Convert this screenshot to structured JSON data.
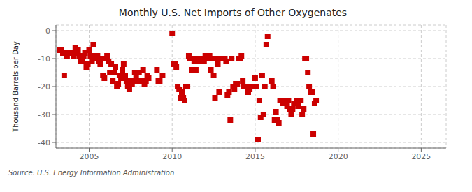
{
  "chart_data": {
    "type": "scatter",
    "title": "Monthly U.S. Net Imports of Other Oxygenates",
    "ylabel": "Thousand Barrels per Day",
    "annotations": [
      "Source: U.S. Energy Information Administration"
    ],
    "xlim": [
      2003.0,
      2026.5
    ],
    "ylim": [
      -42,
      2
    ],
    "xticks": [
      2005,
      2010,
      2015,
      2020,
      2025
    ],
    "yticks": [
      0,
      -10,
      -20,
      -30,
      -40
    ],
    "color": "#CC0000",
    "marker": "square",
    "grid": true,
    "x": [
      2003.25,
      2003.33,
      2003.42,
      2003.5,
      2003.58,
      2003.67,
      2003.75,
      2003.83,
      2003.92,
      2004.0,
      2004.08,
      2004.17,
      2004.25,
      2004.33,
      2004.42,
      2004.5,
      2004.58,
      2004.67,
      2004.75,
      2004.83,
      2004.92,
      2005.0,
      2005.08,
      2005.17,
      2005.25,
      2005.33,
      2005.42,
      2005.5,
      2005.58,
      2005.67,
      2005.75,
      2005.83,
      2005.92,
      2006.0,
      2006.08,
      2006.17,
      2006.25,
      2006.33,
      2006.42,
      2006.5,
      2006.58,
      2006.67,
      2006.75,
      2006.83,
      2006.92,
      2007.0,
      2007.08,
      2007.17,
      2007.25,
      2007.33,
      2007.42,
      2007.5,
      2007.58,
      2007.67,
      2007.75,
      2007.83,
      2007.92,
      2008.0,
      2008.08,
      2008.17,
      2008.25,
      2008.33,
      2008.42,
      2008.5,
      2008.58,
      2009.08,
      2009.17,
      2009.25,
      2009.42,
      2010.0,
      2010.08,
      2010.17,
      2010.25,
      2010.33,
      2010.42,
      2010.5,
      2010.58,
      2010.67,
      2010.75,
      2010.83,
      2010.92,
      2011.0,
      2011.08,
      2011.17,
      2011.25,
      2011.33,
      2011.42,
      2011.5,
      2011.58,
      2011.67,
      2011.75,
      2011.83,
      2011.92,
      2012.0,
      2012.08,
      2012.17,
      2012.25,
      2012.33,
      2012.42,
      2012.5,
      2012.58,
      2012.67,
      2012.75,
      2012.83,
      2012.92,
      2013.0,
      2013.08,
      2013.17,
      2013.25,
      2013.33,
      2013.42,
      2013.5,
      2013.58,
      2013.67,
      2013.75,
      2013.83,
      2013.92,
      2014.0,
      2014.08,
      2014.17,
      2014.25,
      2014.33,
      2014.42,
      2014.5,
      2014.58,
      2014.67,
      2014.75,
      2014.83,
      2014.92,
      2015.0,
      2015.08,
      2015.17,
      2015.25,
      2015.33,
      2015.42,
      2015.5,
      2015.58,
      2015.67,
      2015.75,
      2016.0,
      2016.08,
      2016.17,
      2016.25,
      2016.33,
      2016.42,
      2016.5,
      2016.58,
      2016.67,
      2016.75,
      2016.83,
      2016.92,
      2017.0,
      2017.08,
      2017.17,
      2017.25,
      2017.33,
      2017.42,
      2017.5,
      2017.58,
      2017.67,
      2017.75,
      2017.83,
      2017.92,
      2018.0,
      2018.08,
      2018.17,
      2018.25,
      2018.33,
      2018.42,
      2018.5,
      2018.58,
      2018.67
    ],
    "values": [
      -7,
      -7,
      -8,
      -16,
      -8,
      -9,
      -8,
      -8,
      -8,
      -8,
      -9,
      -6,
      -8,
      -7,
      -9,
      -11,
      -11,
      -9,
      -8,
      -13,
      -12,
      -7,
      -9,
      -11,
      -5,
      -9,
      -10,
      -9,
      -11,
      -12,
      -10,
      -16,
      -17,
      -10,
      -9,
      -11,
      -15,
      -12,
      -18,
      -15,
      -13,
      -20,
      -19,
      -16,
      -17,
      -14,
      -12,
      -16,
      -18,
      -20,
      -21,
      -18,
      -19,
      -18,
      -15,
      -16,
      -18,
      -15,
      -18,
      -18,
      -14,
      -19,
      -18,
      -16,
      -17,
      -14,
      -18,
      -18,
      -16,
      -1,
      -12,
      -12,
      -13,
      -20,
      -21,
      -24,
      -22,
      -24,
      -25,
      -20,
      -20,
      -9,
      -10,
      -14,
      -10,
      -11,
      -14,
      -10,
      -11,
      -11,
      -10,
      -11,
      -11,
      -9,
      -10,
      -10,
      -9,
      -14,
      -10,
      -16,
      -24,
      -10,
      -12,
      -22,
      -10,
      -10,
      -10,
      -10,
      -11,
      -23,
      -22,
      -32,
      -10,
      -20,
      -21,
      -19,
      -19,
      -10,
      -10,
      -9,
      -18,
      -20,
      -20,
      -20,
      -22,
      -21,
      -20,
      -20,
      -20,
      -17,
      -20,
      -39,
      -25,
      -31,
      -16,
      -30,
      -20,
      -5,
      -2,
      -18,
      -20,
      -32,
      -29,
      -32,
      -33,
      -25,
      -25,
      -26,
      -25,
      -25,
      -27,
      -25,
      -28,
      -30,
      -28,
      -26,
      -26,
      -25,
      -27,
      -25,
      -25,
      -30,
      -28,
      -10,
      -10,
      -15,
      -20,
      -22,
      -22,
      -37,
      -26,
      -25
    ]
  }
}
